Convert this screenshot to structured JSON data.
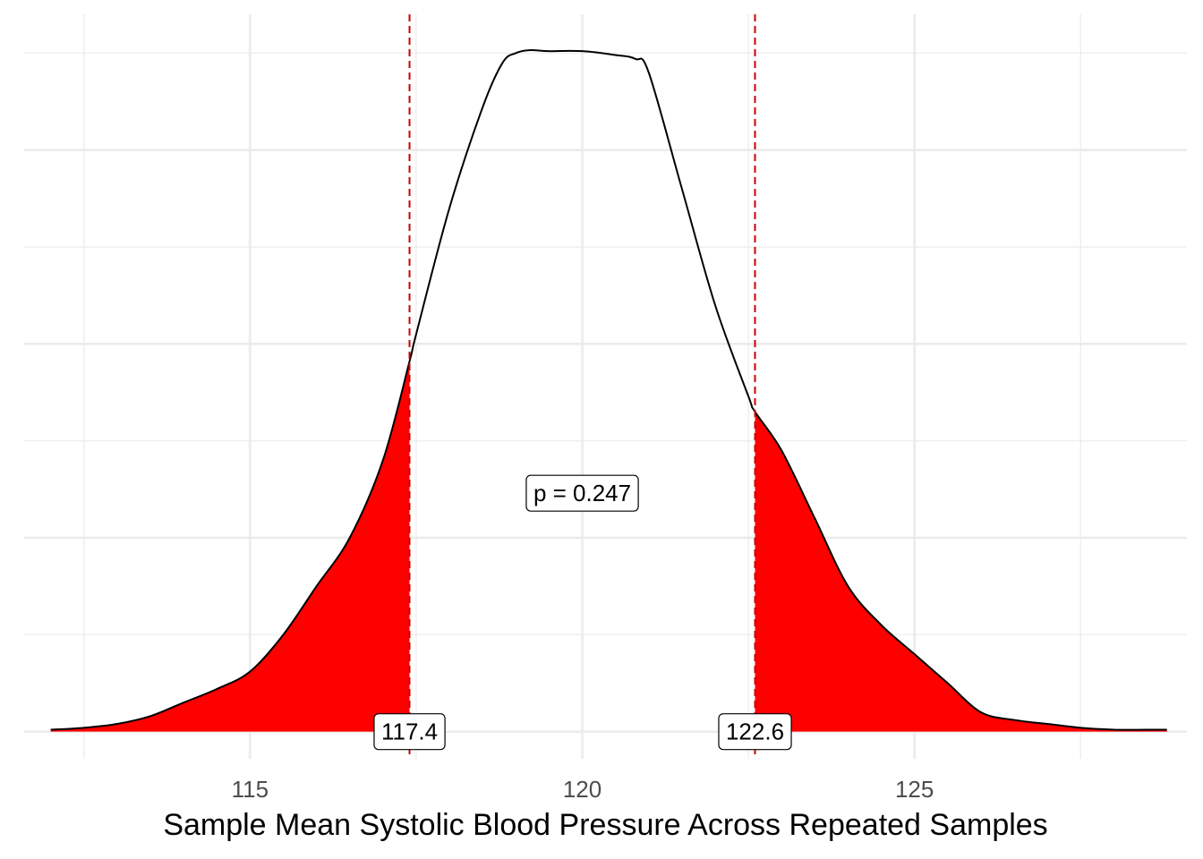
{
  "chart_data": {
    "type": "area",
    "title": "",
    "xlabel": "Sample Mean Systolic Blood Pressure Across Repeated Samples",
    "ylabel": "",
    "xlim": [
      111.6,
      129.1
    ],
    "ylim": [
      -0.014,
      0.37
    ],
    "x_ticks": [
      115,
      120,
      125
    ],
    "x_tick_labels": [
      "115",
      "120",
      "125"
    ],
    "y_major_gridlines": [
      0,
      0.1,
      0.2,
      0.3
    ],
    "y_minor_gridlines": [
      0.05,
      0.15,
      0.25,
      0.35
    ],
    "x_minor_gridlines": [
      112.5,
      117.5,
      122.5,
      127.5
    ],
    "show_y_tick_labels": false,
    "grid": true,
    "density_curve": {
      "x": [
        112.0,
        112.5,
        113.0,
        113.5,
        114.0,
        114.5,
        115.0,
        115.5,
        116.0,
        116.5,
        117.0,
        117.4,
        117.5,
        118.0,
        118.5,
        118.8,
        119.0,
        119.2,
        119.5,
        120.0,
        120.5,
        120.8,
        121.0,
        121.5,
        122.0,
        122.5,
        122.6,
        123.0,
        123.5,
        124.0,
        124.5,
        125.0,
        125.5,
        126.0,
        126.5,
        127.0,
        127.5,
        128.0,
        128.5,
        128.8
      ],
      "y": [
        0.001,
        0.002,
        0.004,
        0.008,
        0.015,
        0.022,
        0.031,
        0.05,
        0.075,
        0.1,
        0.14,
        0.191,
        0.205,
        0.27,
        0.322,
        0.345,
        0.35,
        0.3515,
        0.351,
        0.351,
        0.349,
        0.347,
        0.34,
        0.28,
        0.22,
        0.173,
        0.165,
        0.145,
        0.11,
        0.075,
        0.055,
        0.04,
        0.025,
        0.01,
        0.006,
        0.004,
        0.002,
        0.001,
        0.001,
        0.001
      ]
    },
    "shaded_regions": [
      {
        "from": 112.0,
        "to": 117.4,
        "color": "#ff0000"
      },
      {
        "from": 122.6,
        "to": 128.8,
        "color": "#ff0000"
      }
    ],
    "reference_lines": [
      {
        "x": 117.4,
        "color": "#cc0000",
        "style": "dashed",
        "label": "117.4"
      },
      {
        "x": 122.6,
        "color": "#cc0000",
        "style": "dashed",
        "label": "122.6"
      }
    ],
    "annotations": [
      {
        "text": "p = 0.247",
        "x": 120.0,
        "y": 0.123
      }
    ],
    "colors": {
      "fill": "#ff0000",
      "curve": "#000000",
      "reference_line": "#cc0000",
      "grid": "#ebebeb"
    }
  }
}
